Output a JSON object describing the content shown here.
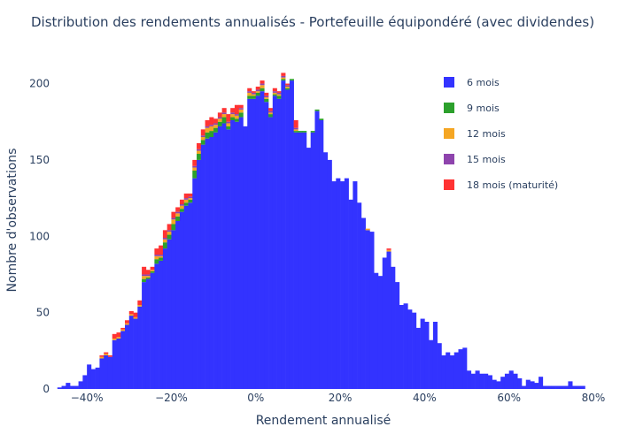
{
  "chart_data": {
    "type": "bar",
    "barmode": "stack",
    "title": "Distribution des rendements annualisés - Portefeuille équipondéré (avec dividendes)",
    "xlabel": "Rendement annualisé",
    "ylabel": "Nombre d'observations",
    "x_range": [
      -0.48,
      0.8
    ],
    "y_range": [
      0,
      220
    ],
    "x_ticks": [
      "−40%",
      "−20%",
      "0%",
      "20%",
      "40%",
      "60%",
      "80%"
    ],
    "x_tick_values": [
      -0.4,
      -0.2,
      0,
      0.2,
      0.4,
      0.6,
      0.8
    ],
    "y_ticks": [
      "0",
      "50",
      "100",
      "150",
      "200"
    ],
    "y_tick_values": [
      0,
      50,
      100,
      150,
      200
    ],
    "bin_start": -0.47,
    "bin_width": 0.01,
    "grid": false,
    "legend_position": "top-right",
    "series": [
      {
        "name": "6 mois",
        "color": "#3333ff",
        "values": [
          1,
          2,
          4,
          2,
          2,
          5,
          9,
          16,
          13,
          14,
          20,
          22,
          21,
          32,
          33,
          38,
          42,
          48,
          46,
          54,
          70,
          72,
          76,
          82,
          84,
          92,
          98,
          104,
          110,
          116,
          120,
          122,
          138,
          150,
          160,
          164,
          165,
          168,
          172,
          174,
          170,
          176,
          175,
          178,
          172,
          190,
          190,
          192,
          195,
          188,
          178,
          192,
          190,
          202,
          196,
          202,
          168,
          168,
          168,
          158,
          168,
          182,
          176,
          155,
          150,
          136,
          138,
          136,
          138,
          124,
          136,
          122,
          112,
          104,
          103,
          76,
          74,
          86,
          90,
          80,
          70,
          55,
          56,
          52,
          50,
          40,
          46,
          44,
          32,
          44,
          30,
          22,
          24,
          22,
          24,
          26,
          27,
          12,
          10,
          12,
          10,
          10,
          9,
          6,
          5,
          8,
          10,
          12,
          10,
          7,
          2,
          6,
          5,
          4,
          8,
          2,
          2,
          2,
          2,
          2,
          2,
          5,
          2,
          2,
          2
        ]
      },
      {
        "name": "9 mois",
        "color": "#2ca02c",
        "values": [
          0,
          0,
          0,
          0,
          0,
          0,
          0,
          0,
          0,
          0,
          0,
          0,
          0,
          0,
          0,
          0,
          0,
          0,
          0,
          0,
          2,
          1,
          1,
          3,
          2,
          4,
          3,
          4,
          3,
          2,
          2,
          2,
          5,
          4,
          3,
          4,
          4,
          3,
          3,
          4,
          2,
          2,
          2,
          3,
          0,
          2,
          2,
          2,
          2,
          2,
          2,
          1,
          2,
          1,
          1,
          1,
          1,
          1,
          1,
          0,
          1,
          1,
          1,
          0,
          0,
          0,
          0,
          0,
          0,
          0,
          0,
          0,
          0,
          0,
          0,
          0,
          0,
          0,
          0,
          0,
          0,
          0,
          0,
          0,
          0,
          0,
          0,
          0,
          0,
          0,
          0,
          0,
          0,
          0,
          0,
          0,
          0,
          0,
          0,
          0,
          0,
          0,
          0,
          0,
          0,
          0,
          0,
          0,
          0,
          0,
          0,
          0,
          0,
          0,
          0,
          0,
          0,
          0,
          0,
          0,
          0,
          0,
          0,
          0,
          0
        ]
      },
      {
        "name": "12 mois",
        "color": "#f5a623",
        "values": [
          0,
          0,
          0,
          0,
          0,
          0,
          0,
          0,
          0,
          0,
          1,
          1,
          0,
          1,
          1,
          1,
          1,
          1,
          1,
          1,
          2,
          1,
          1,
          2,
          1,
          2,
          2,
          3,
          2,
          2,
          2,
          1,
          2,
          2,
          2,
          3,
          3,
          2,
          2,
          2,
          2,
          2,
          2,
          2,
          0,
          2,
          1,
          1,
          2,
          1,
          1,
          1,
          1,
          1,
          1,
          0,
          1,
          0,
          0,
          0,
          0,
          0,
          0,
          0,
          0,
          0,
          0,
          0,
          0,
          0,
          0,
          0,
          0,
          1,
          0,
          0,
          0,
          0,
          1,
          0,
          0,
          0,
          0,
          0,
          0,
          0,
          0,
          0,
          0,
          0,
          0,
          0,
          0,
          0,
          0,
          0,
          0,
          0,
          0,
          0,
          0,
          0,
          0,
          0,
          0,
          0,
          0,
          0,
          0,
          0,
          0,
          0,
          0,
          0,
          0,
          0,
          0,
          0,
          0,
          0,
          0,
          0,
          0,
          0,
          0
        ]
      },
      {
        "name": "15 mois",
        "color": "#8e44ad",
        "values": [
          0,
          0,
          0,
          0,
          0,
          0,
          0,
          0,
          0,
          0,
          0,
          0,
          0,
          0,
          0,
          0,
          0,
          0,
          0,
          0,
          1,
          1,
          0,
          1,
          1,
          1,
          1,
          1,
          1,
          1,
          1,
          1,
          1,
          1,
          1,
          1,
          1,
          1,
          1,
          1,
          1,
          1,
          1,
          1,
          0,
          1,
          1,
          1,
          1,
          1,
          1,
          1,
          1,
          1,
          1,
          0,
          1,
          0,
          0,
          0,
          0,
          0,
          0,
          0,
          0,
          0,
          0,
          0,
          0,
          0,
          0,
          0,
          0,
          0,
          0,
          0,
          0,
          0,
          0,
          0,
          0,
          0,
          0,
          0,
          0,
          0,
          0,
          0,
          0,
          0,
          0,
          0,
          0,
          0,
          0,
          0,
          0,
          0,
          0,
          0,
          0,
          0,
          0,
          0,
          0,
          0,
          0,
          0,
          0,
          0,
          0,
          0,
          0,
          0,
          0,
          0,
          0,
          0,
          0,
          0,
          0,
          0,
          0,
          0,
          0
        ]
      },
      {
        "name": "18 mois (maturité)",
        "color": "#ff3333",
        "values": [
          0,
          0,
          0,
          0,
          0,
          0,
          0,
          0,
          0,
          0,
          1,
          1,
          1,
          3,
          3,
          1,
          2,
          2,
          3,
          3,
          5,
          3,
          2,
          4,
          6,
          5,
          4,
          4,
          3,
          3,
          3,
          2,
          4,
          4,
          4,
          4,
          5,
          3,
          3,
          3,
          5,
          3,
          6,
          2,
          0,
          2,
          1,
          2,
          2,
          2,
          2,
          2,
          1,
          2,
          1,
          0,
          5,
          0,
          0,
          0,
          0,
          0,
          0,
          0,
          0,
          0,
          0,
          0,
          0,
          0,
          0,
          0,
          0,
          0,
          0,
          0,
          0,
          0,
          1,
          0,
          0,
          0,
          0,
          0,
          0,
          0,
          0,
          0,
          0,
          0,
          0,
          0,
          0,
          0,
          0,
          0,
          0,
          0,
          0,
          0,
          0,
          0,
          0,
          0,
          0,
          0,
          0,
          0,
          0,
          0,
          0,
          0,
          0,
          0,
          0,
          0,
          0,
          0,
          0,
          0,
          0,
          0,
          0,
          0,
          0
        ]
      }
    ]
  }
}
